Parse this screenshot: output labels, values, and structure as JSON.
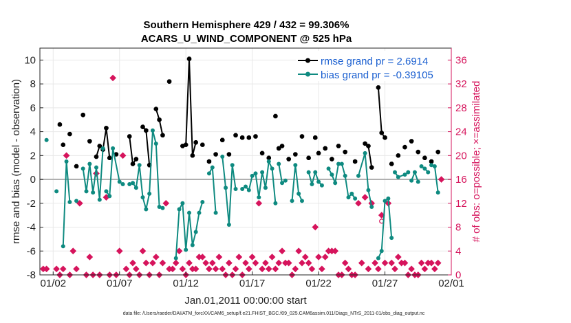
{
  "chart_data": {
    "type": "line",
    "title_line1": "Southern Hemisphere 429 / 432 = 99.306%",
    "title_line2": "ACARS_U_WIND_COMPONENT @ 525 hPa",
    "xlabel": "Jan.01,2011 00:00:00 start",
    "ylabel": "rmse and bias (model - observation)",
    "ylabel_right": "# of obs: o=possible; ×=assimilated",
    "xlim": [
      1,
      32
    ],
    "ylim": [
      -8,
      11
    ],
    "ylim_right": [
      0,
      38
    ],
    "x_tick_values": [
      2,
      7,
      12,
      17,
      22,
      27,
      32
    ],
    "x_tick_labels": [
      "01/02",
      "01/07",
      "01/12",
      "01/17",
      "01/22",
      "01/27",
      "02/01"
    ],
    "y_ticks": [
      "-8",
      "-6",
      "-4",
      "-2",
      "0",
      "2",
      "4",
      "6",
      "8",
      "10"
    ],
    "y_tick_values": [
      -8,
      -6,
      -4,
      -2,
      0,
      2,
      4,
      6,
      8,
      10
    ],
    "y_right_ticks": [
      "0",
      "4",
      "8",
      "12",
      "16",
      "20",
      "24",
      "28",
      "32",
      "36"
    ],
    "y_right_tick_values": [
      0,
      4,
      8,
      12,
      16,
      20,
      24,
      28,
      32,
      36
    ],
    "legend": {
      "rmse_label": "rmse grand pr = 2.6914",
      "bias_label": "bias grand pr = -0.39105"
    },
    "colors": {
      "rmse": "#000000",
      "bias": "#0e8a80",
      "obs": "#d6145c",
      "zero": "#b0b0b0"
    },
    "series": [
      {
        "name": "rmse",
        "segments": [
          [
            [
              2.5,
              4.6
            ]
          ],
          [
            [
              2.75,
              2.9
            ]
          ],
          [
            [
              3.25,
              3.8
            ]
          ],
          [
            [
              3.75,
              1.1
            ]
          ],
          [
            [
              4.25,
              5.4
            ]
          ],
          [
            [
              4.75,
              3.2
            ]
          ],
          [
            [
              5.25,
              1.9
            ],
            [
              5.5,
              2.8
            ]
          ],
          [
            [
              5.75,
              2.5
            ],
            [
              6.0,
              4.3
            ],
            [
              6.25,
              1.8
            ]
          ],
          [
            [
              6.75,
              2.1
            ]
          ],
          [
            [
              7.75,
              3.6
            ],
            [
              8.0,
              1.3
            ],
            [
              8.25,
              1.7
            ]
          ],
          [
            [
              8.75,
              4.4
            ],
            [
              9.0,
              4.1
            ],
            [
              9.25,
              1.2
            ]
          ],
          [
            [
              9.75,
              5.9
            ],
            [
              10.0,
              5.0
            ],
            [
              10.25,
              3.7
            ]
          ],
          [
            [
              10.75,
              8.2
            ]
          ],
          [
            [
              11.75,
              2.8
            ],
            [
              12.0,
              2.9
            ],
            [
              12.25,
              10.1
            ],
            [
              12.5,
              2.0
            ],
            [
              12.75,
              3.1
            ]
          ],
          [
            [
              13.25,
              2.9
            ]
          ],
          [
            [
              13.75,
              1.5
            ]
          ],
          [
            [
              14.25,
              2.1
            ]
          ],
          [
            [
              14.75,
              3.3
            ]
          ],
          [
            [
              15.25,
              2.1
            ]
          ],
          [
            [
              15.75,
              3.7
            ]
          ],
          [
            [
              16.25,
              3.5
            ]
          ],
          [
            [
              16.75,
              3.5
            ]
          ],
          [
            [
              17.25,
              3.6
            ]
          ],
          [
            [
              17.75,
              2.2
            ]
          ],
          [
            [
              18.25,
              1.8
            ]
          ],
          [
            [
              18.75,
              5.3
            ]
          ],
          [
            [
              19.0,
              2.6
            ],
            [
              19.25,
              2.8
            ]
          ],
          [
            [
              19.75,
              1.7
            ]
          ],
          [
            [
              20.25,
              2.1
            ]
          ],
          [
            [
              20.75,
              3.6
            ]
          ],
          [
            [
              21.25,
              1.8
            ]
          ],
          [
            [
              21.75,
              3.5
            ]
          ],
          [
            [
              22.0,
              2.2
            ]
          ],
          [
            [
              22.5,
              2.6
            ]
          ],
          [
            [
              23.0,
              1.7
            ]
          ],
          [
            [
              23.5,
              2.8
            ]
          ],
          [
            [
              24.0,
              2.3
            ]
          ],
          [
            [
              24.75,
              1.5
            ]
          ],
          [
            [
              25.5,
              3.0
            ],
            [
              25.75,
              2.8
            ],
            [
              26.0,
              1.0
            ]
          ],
          [
            [
              26.5,
              7.7
            ],
            [
              26.75,
              3.9
            ],
            [
              27.0,
              3.5
            ]
          ],
          [
            [
              27.5,
              1.3
            ]
          ],
          [
            [
              28.0,
              2.0
            ]
          ],
          [
            [
              28.5,
              2.7
            ]
          ],
          [
            [
              29.0,
              3.2
            ]
          ],
          [
            [
              29.5,
              2.3
            ]
          ],
          [
            [
              30.0,
              1.8
            ]
          ],
          [
            [
              30.5,
              1.5
            ]
          ],
          [
            [
              31.0,
              2.3
            ]
          ]
        ]
      },
      {
        "name": "bias",
        "segments": [
          [
            [
              1.5,
              3.3
            ]
          ],
          [
            [
              2.25,
              -1.0
            ]
          ],
          [
            [
              2.75,
              -5.6
            ],
            [
              3.0,
              1.5
            ],
            [
              3.25,
              -1.9
            ]
          ],
          [
            [
              3.75,
              -1.8
            ]
          ],
          [
            [
              4.25,
              0.9
            ],
            [
              4.5,
              -1.0
            ],
            [
              4.75,
              1.3
            ],
            [
              5.0,
              -1.1
            ],
            [
              5.25,
              1.0
            ],
            [
              5.5,
              -1.7
            ],
            [
              5.75,
              2.6
            ]
          ],
          [
            [
              6.0,
              -1.0
            ],
            [
              6.25,
              -1.4
            ],
            [
              6.5,
              2.6
            ],
            [
              7.0,
              -0.2
            ],
            [
              7.25,
              -0.4
            ]
          ],
          [
            [
              7.75,
              -0.4
            ],
            [
              8.0,
              -0.3
            ],
            [
              8.25,
              -0.7
            ],
            [
              8.5,
              1.2
            ],
            [
              8.75,
              -1.5
            ],
            [
              9.0,
              -2.5
            ],
            [
              9.25,
              -1.2
            ],
            [
              9.5,
              4.1
            ],
            [
              9.75,
              3.0
            ],
            [
              10.0,
              -2.3
            ],
            [
              10.25,
              -2.4
            ]
          ],
          [
            [
              11.25,
              -6.6
            ],
            [
              11.5,
              -2.5
            ],
            [
              11.75,
              -2.0
            ],
            [
              12.0,
              -5.9
            ],
            [
              12.25,
              -2.8
            ],
            [
              12.5,
              -5.5
            ],
            [
              12.75,
              -4.4
            ],
            [
              13.0,
              -2.8
            ],
            [
              13.25,
              -1.9
            ]
          ],
          [
            [
              13.75,
              0.5
            ],
            [
              14.0,
              1.0
            ],
            [
              14.25,
              -2.8
            ]
          ],
          [
            [
              14.75,
              1.9
            ],
            [
              15.0,
              -0.7
            ],
            [
              15.25,
              -3.8
            ],
            [
              15.5,
              1.2
            ],
            [
              15.75,
              -0.8
            ]
          ],
          [
            [
              16.25,
              -0.8
            ],
            [
              16.5,
              -0.6
            ],
            [
              16.75,
              -0.9
            ],
            [
              17.0,
              0.3
            ],
            [
              17.25,
              0.5
            ],
            [
              17.5,
              -1.5
            ],
            [
              17.75,
              0.6
            ],
            [
              18.0,
              -0.7
            ],
            [
              18.25,
              1.5
            ],
            [
              18.5,
              0.9
            ],
            [
              18.75,
              -2.0
            ]
          ],
          [
            [
              19.0,
              1.3
            ],
            [
              19.25,
              -0.3
            ],
            [
              19.5,
              -0.1
            ]
          ],
          [
            [
              20.0,
              -1.8
            ],
            [
              20.25,
              1.2
            ],
            [
              20.5,
              -1.2
            ],
            [
              20.75,
              -1.8
            ]
          ],
          [
            [
              21.25,
              0.6
            ],
            [
              21.5,
              -0.4
            ],
            [
              21.75,
              0.6
            ],
            [
              22.0,
              -0.2
            ],
            [
              22.25,
              -0.5
            ]
          ],
          [
            [
              22.75,
              0.9
            ],
            [
              23.0,
              0.4
            ],
            [
              23.25,
              -0.3
            ],
            [
              23.5,
              1.3
            ],
            [
              23.75,
              1.3
            ],
            [
              24.0,
              0.3
            ],
            [
              24.25,
              -1.5
            ],
            [
              24.5,
              -1.2
            ],
            [
              24.75,
              -1.6
            ]
          ],
          [
            [
              25.0,
              0.3
            ],
            [
              25.5,
              2.2
            ],
            [
              25.75,
              -0.9
            ],
            [
              26.0,
              -2.3
            ]
          ],
          [
            [
              26.5,
              -6.6
            ],
            [
              26.75,
              -6.0
            ],
            [
              27.0,
              -1.8
            ],
            [
              27.25,
              -1.6
            ],
            [
              27.5,
              -4.9
            ]
          ],
          [
            [
              27.75,
              0.6
            ],
            [
              28.0,
              0.2
            ],
            [
              28.5,
              0.4
            ],
            [
              28.75,
              0.6
            ]
          ],
          [
            [
              29.0,
              -0.1
            ],
            [
              29.25,
              0.6
            ],
            [
              29.5,
              -0.2
            ]
          ],
          [
            [
              29.75,
              1.1
            ],
            [
              30.0,
              0.9
            ],
            [
              30.25,
              0.6
            ]
          ],
          [
            [
              30.5,
              1.2
            ],
            [
              30.75,
              1.1
            ],
            [
              31.0,
              -1.1
            ]
          ]
        ]
      }
    ],
    "obs_assimilated": [
      [
        1.25,
        1
      ],
      [
        1.5,
        1
      ],
      [
        2.25,
        1
      ],
      [
        2.5,
        0
      ],
      [
        2.75,
        1
      ],
      [
        3.0,
        20
      ],
      [
        3.25,
        0
      ],
      [
        3.5,
        4
      ],
      [
        3.75,
        1
      ],
      [
        4.0,
        12
      ],
      [
        4.5,
        0
      ],
      [
        4.75,
        3
      ],
      [
        5.0,
        0
      ],
      [
        5.25,
        17
      ],
      [
        5.5,
        0
      ],
      [
        6.0,
        13
      ],
      [
        6.25,
        0
      ],
      [
        6.5,
        33
      ],
      [
        6.75,
        0
      ],
      [
        7.0,
        4
      ],
      [
        7.25,
        20
      ],
      [
        7.5,
        1
      ],
      [
        7.75,
        0
      ],
      [
        8.0,
        2
      ],
      [
        8.25,
        1
      ],
      [
        8.5,
        0
      ],
      [
        8.75,
        4
      ],
      [
        9.0,
        2
      ],
      [
        9.25,
        0
      ],
      [
        9.5,
        2
      ],
      [
        9.75,
        3
      ],
      [
        10.0,
        0
      ],
      [
        10.25,
        2
      ],
      [
        10.5,
        12
      ],
      [
        10.75,
        1
      ],
      [
        11.0,
        1
      ],
      [
        11.25,
        2
      ],
      [
        11.5,
        4
      ],
      [
        11.75,
        1
      ],
      [
        12.0,
        0
      ],
      [
        12.25,
        2
      ],
      [
        12.5,
        1
      ],
      [
        12.75,
        1
      ],
      [
        13.0,
        3
      ],
      [
        13.25,
        3
      ],
      [
        13.5,
        2
      ],
      [
        13.75,
        1
      ],
      [
        14.0,
        2
      ],
      [
        14.25,
        1
      ],
      [
        14.5,
        3
      ],
      [
        14.75,
        1
      ],
      [
        15.0,
        0
      ],
      [
        15.25,
        2
      ],
      [
        15.5,
        0
      ],
      [
        15.75,
        1
      ],
      [
        16.0,
        3
      ],
      [
        16.25,
        0
      ],
      [
        16.5,
        2
      ],
      [
        16.75,
        1
      ],
      [
        17.0,
        3
      ],
      [
        17.25,
        2
      ],
      [
        17.5,
        12
      ],
      [
        17.75,
        1
      ],
      [
        18.0,
        2
      ],
      [
        18.25,
        1
      ],
      [
        18.5,
        3
      ],
      [
        18.75,
        1
      ],
      [
        19.0,
        2
      ],
      [
        19.25,
        4
      ],
      [
        19.5,
        2
      ],
      [
        19.75,
        2
      ],
      [
        20.0,
        0
      ],
      [
        20.25,
        1
      ],
      [
        20.5,
        4
      ],
      [
        20.75,
        2
      ],
      [
        21.0,
        3
      ],
      [
        21.25,
        2
      ],
      [
        21.5,
        1
      ],
      [
        21.75,
        8
      ],
      [
        22.0,
        3
      ],
      [
        22.25,
        1
      ],
      [
        22.5,
        3
      ],
      [
        22.75,
        4
      ],
      [
        23.0,
        4
      ],
      [
        23.25,
        4
      ],
      [
        23.5,
        0
      ],
      [
        23.75,
        0
      ],
      [
        24.0,
        2
      ],
      [
        24.25,
        1
      ],
      [
        24.5,
        0
      ],
      [
        24.75,
        0
      ],
      [
        25.0,
        12
      ],
      [
        25.25,
        2
      ],
      [
        25.5,
        13
      ],
      [
        25.75,
        1
      ],
      [
        26.0,
        12
      ],
      [
        26.25,
        2
      ],
      [
        26.5,
        1
      ],
      [
        26.75,
        10
      ],
      [
        27.0,
        2
      ],
      [
        27.25,
        12
      ],
      [
        27.5,
        2
      ],
      [
        27.75,
        1
      ],
      [
        28.0,
        3
      ],
      [
        28.25,
        2
      ],
      [
        28.5,
        2
      ],
      [
        28.75,
        0
      ],
      [
        29.0,
        1
      ],
      [
        29.25,
        0
      ],
      [
        29.5,
        0
      ],
      [
        29.75,
        2
      ],
      [
        30.0,
        1
      ],
      [
        30.25,
        2
      ],
      [
        30.5,
        2
      ],
      [
        30.75,
        1
      ],
      [
        31.0,
        2
      ],
      [
        31.25,
        16
      ]
    ],
    "obs_possible": [
      [
        26.75,
        9
      ]
    ]
  },
  "footnote": "data file: /Users/raeder/DAI/ATM_forcXX/CAM6_setup/f.e21.FHIST_BGC.f09_025.CAM6assim.011/Diags_NTrS_2011-01/obs_diag_output.nc"
}
